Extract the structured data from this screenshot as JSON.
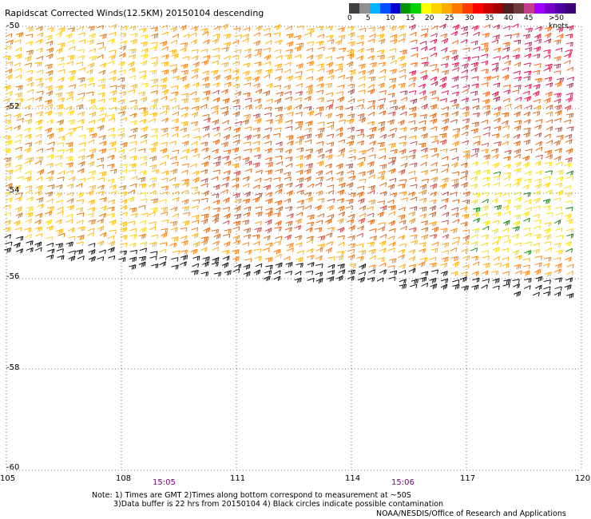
{
  "title": "Rapidscat Corrected Winds(12.5KM) 20150104 descending",
  "scale": {
    "colors": [
      "#404040",
      "#909090",
      "#00b4ff",
      "#0050ff",
      "#0000d0",
      "#009600",
      "#00d200",
      "#ffff00",
      "#ffd200",
      "#ffaa00",
      "#ff7800",
      "#ff3c00",
      "#ff0000",
      "#c80000",
      "#a00000",
      "#501e1e",
      "#6e3c3c",
      "#c83c8c",
      "#a000ff",
      "#7800c8",
      "#5000a0",
      "#3c0078"
    ],
    "labels": [
      "0",
      "5",
      "10",
      "15",
      "20",
      "25",
      "30",
      "35",
      "40",
      "45",
      ">50 knots"
    ]
  },
  "lat_labels": [
    "-50",
    "-52",
    "-54",
    "-56",
    "-58",
    "-60"
  ],
  "lon_labels": [
    "105",
    "108",
    "111",
    "114",
    "117",
    "120"
  ],
  "times": [
    "15:05",
    "15:06"
  ],
  "notes": [
    "Note: 1) Times are GMT 2)Times along bottom correspond to measurement at ~50S",
    "3)Data buffer is 22 hrs from 20150104 4) Black circles indicate possible contamination"
  ],
  "credit": "NOAA/NESDIS/Office of Research and Applications"
}
